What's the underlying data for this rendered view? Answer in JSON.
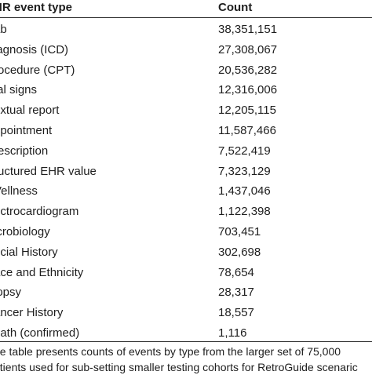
{
  "table": {
    "headers": {
      "type": "HR event type",
      "count": "Count"
    },
    "rows": [
      {
        "type": "ab",
        "count": "38,351,151"
      },
      {
        "type": "iagnosis (ICD)",
        "count": "27,308,067"
      },
      {
        "type": "rocedure (CPT)",
        "count": "20,536,282"
      },
      {
        "type": "tal signs",
        "count": "12,316,006"
      },
      {
        "type": "extual report",
        "count": "12,205,115"
      },
      {
        "type": "ppointment",
        "count": "11,587,466"
      },
      {
        "type": "rescription",
        "count": "7,522,419"
      },
      {
        "type": "ructured EHR value",
        "count": "7,323,129"
      },
      {
        "type": "Vellness",
        "count": "1,437,046"
      },
      {
        "type": "ectrocardiogram",
        "count": "1,122,398"
      },
      {
        "type": "icrobiology",
        "count": "703,451"
      },
      {
        "type": "ocial History",
        "count": "302,698"
      },
      {
        "type": "ace and Ethnicity",
        "count": "78,654"
      },
      {
        "type": "iopsy",
        "count": "28,317"
      },
      {
        "type": "ancer History",
        "count": "18,557"
      },
      {
        "type": "eath (confirmed)",
        "count": "1,116"
      }
    ]
  },
  "caption": {
    "line1": "he table presents counts of events by type from the larger set of 75,000",
    "line2": "atients used for sub-setting smaller testing cohorts for RetroGuide scenaric"
  }
}
